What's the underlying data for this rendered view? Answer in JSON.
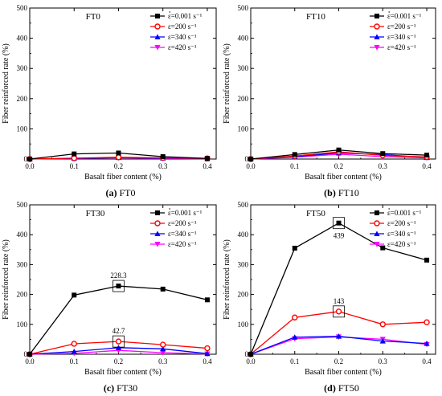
{
  "chart_data": [
    {
      "type": "line",
      "panel_label": "FT0",
      "caption": {
        "letter": "(a)",
        "text": "FT0"
      },
      "xlabel": "Basalt fiber content (%)",
      "ylabel": "Fiber reinforced rate (%)",
      "x": [
        0.0,
        0.1,
        0.2,
        0.3,
        0.4
      ],
      "x_tick_labels": [
        "0.0",
        "0.1",
        "0.2",
        "0.3",
        "0.4"
      ],
      "y_tick_labels": [
        "0",
        "100",
        "200",
        "300",
        "400",
        "500"
      ],
      "xlim": [
        0.0,
        0.42
      ],
      "ylim": [
        0,
        500
      ],
      "legend_placement": "top-right",
      "series": [
        {
          "name": "ε=0.001 s⁻¹",
          "color": "#000000",
          "marker": "square",
          "values": [
            0,
            17,
            20,
            8,
            2
          ]
        },
        {
          "name": "ε=200 s⁻¹",
          "color": "#ff0000",
          "marker": "circle",
          "values": [
            0,
            3,
            6,
            4,
            2
          ]
        },
        {
          "name": "ε=340 s⁻¹",
          "color": "#0000ff",
          "marker": "triangle-up",
          "values": [
            0,
            2,
            5,
            3,
            1
          ]
        },
        {
          "name": "ε=420 s⁻¹",
          "color": "#ff00ff",
          "marker": "triangle-down",
          "values": [
            0,
            2,
            4,
            2,
            1
          ]
        }
      ],
      "annotations": []
    },
    {
      "type": "line",
      "panel_label": "FT10",
      "caption": {
        "letter": "(b)",
        "text": "FT10"
      },
      "xlabel": "Basalt fiber content (%)",
      "ylabel": "Fiber reinforced rate (%)",
      "x": [
        0.0,
        0.1,
        0.2,
        0.3,
        0.4
      ],
      "x_tick_labels": [
        "0.0",
        "0.1",
        "0.2",
        "0.3",
        "0.4"
      ],
      "y_tick_labels": [
        "0",
        "100",
        "200",
        "300",
        "400",
        "500"
      ],
      "xlim": [
        0.0,
        0.42
      ],
      "ylim": [
        0,
        500
      ],
      "legend_placement": "top-right",
      "series": [
        {
          "name": "ε=0.001 s⁻¹",
          "color": "#000000",
          "marker": "square",
          "values": [
            0,
            15,
            30,
            18,
            13
          ]
        },
        {
          "name": "ε=200 s⁻¹",
          "color": "#ff0000",
          "marker": "circle",
          "values": [
            0,
            10,
            24,
            12,
            7
          ]
        },
        {
          "name": "ε=340 s⁻¹",
          "color": "#0000ff",
          "marker": "triangle-up",
          "values": [
            0,
            8,
            20,
            15,
            5
          ]
        },
        {
          "name": "ε=420 s⁻¹",
          "color": "#ff00ff",
          "marker": "triangle-down",
          "values": [
            0,
            6,
            16,
            8,
            4
          ]
        }
      ],
      "annotations": []
    },
    {
      "type": "line",
      "panel_label": "FT30",
      "caption": {
        "letter": "(c)",
        "text": "FT30"
      },
      "xlabel": "Basalt fiber content (%)",
      "ylabel": "Fiber reinforced rate (%)",
      "x": [
        0.0,
        0.1,
        0.2,
        0.3,
        0.4
      ],
      "x_tick_labels": [
        "0.0",
        "0.1",
        "0.2",
        "0.3",
        "0.4"
      ],
      "y_tick_labels": [
        "0",
        "100",
        "200",
        "300",
        "400",
        "500"
      ],
      "xlim": [
        0.0,
        0.42
      ],
      "ylim": [
        0,
        500
      ],
      "legend_placement": "top-right",
      "series": [
        {
          "name": "ε=0.001 s⁻¹",
          "color": "#000000",
          "marker": "square",
          "values": [
            0,
            198,
            228.3,
            218,
            182
          ]
        },
        {
          "name": "ε=200 s⁻¹",
          "color": "#ff0000",
          "marker": "circle",
          "values": [
            0,
            35,
            42.7,
            32,
            20
          ]
        },
        {
          "name": "ε=340 s⁻¹",
          "color": "#0000ff",
          "marker": "triangle-up",
          "values": [
            0,
            9,
            22,
            18,
            2
          ]
        },
        {
          "name": "ε=420 s⁻¹",
          "color": "#ff00ff",
          "marker": "triangle-down",
          "values": [
            0,
            3,
            13,
            5,
            1
          ]
        }
      ],
      "annotations": [
        {
          "text": "228.3",
          "x": 0.2,
          "y": 228.3,
          "boxed_point": true,
          "position": "above"
        },
        {
          "text": "42.7",
          "x": 0.2,
          "y": 42.7,
          "boxed_point": true,
          "position": "above"
        }
      ]
    },
    {
      "type": "line",
      "panel_label": "FT50",
      "caption": {
        "letter": "(d)",
        "text": "FT50"
      },
      "xlabel": "Basalt fiber content (%)",
      "ylabel": "Fiber reinforced rate (%)",
      "x": [
        0.0,
        0.1,
        0.2,
        0.3,
        0.4
      ],
      "x_tick_labels": [
        "0.0",
        "0.1",
        "0.2",
        "0.3",
        "0.4"
      ],
      "y_tick_labels": [
        "0",
        "100",
        "200",
        "300",
        "400",
        "500"
      ],
      "xlim": [
        0.0,
        0.42
      ],
      "ylim": [
        0,
        500
      ],
      "legend_placement": "top-right",
      "series": [
        {
          "name": "ε=0.001 s⁻¹",
          "color": "#000000",
          "marker": "square",
          "values": [
            0,
            355,
            439,
            356,
            315
          ]
        },
        {
          "name": "ε=200 s⁻¹",
          "color": "#ff0000",
          "marker": "circle",
          "values": [
            0,
            123,
            143,
            100,
            107
          ]
        },
        {
          "name": "ε=340 s⁻¹",
          "color": "#0000ff",
          "marker": "triangle-up",
          "values": [
            0,
            57,
            60,
            44,
            36
          ]
        },
        {
          "name": "ε=420 s⁻¹",
          "color": "#ff00ff",
          "marker": "triangle-down",
          "values": [
            0,
            52,
            58,
            50,
            33
          ]
        }
      ],
      "annotations": [
        {
          "text": "439",
          "x": 0.2,
          "y": 439,
          "boxed_point": true,
          "position": "below"
        },
        {
          "text": "143",
          "x": 0.2,
          "y": 143,
          "boxed_point": true,
          "position": "above"
        }
      ]
    }
  ]
}
